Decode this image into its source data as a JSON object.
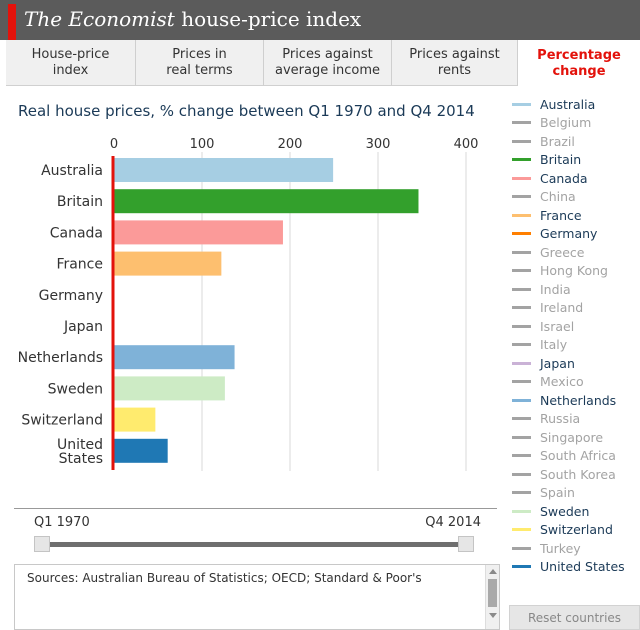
{
  "header": {
    "title_italic": "The Economist",
    "title_rest": " house-price index"
  },
  "tabs": [
    {
      "line1": "House-price",
      "line2": "index",
      "active": false
    },
    {
      "line1": "Prices in",
      "line2": "real terms",
      "active": false
    },
    {
      "line1": "Prices against",
      "line2": "average income",
      "active": false
    },
    {
      "line1": "Prices against",
      "line2": "rents",
      "active": false
    },
    {
      "line1": "Percentage",
      "line2": "change",
      "active": true
    }
  ],
  "chart_data": {
    "type": "bar",
    "orientation": "horizontal",
    "title": "Real house prices, % change between Q1 1970 and Q4 2014",
    "categories": [
      "Australia",
      "Britain",
      "Canada",
      "France",
      "Germany",
      "Japan",
      "Netherlands",
      "Sweden",
      "Switzerland",
      "United States"
    ],
    "values": [
      249,
      346,
      192,
      122,
      0,
      0,
      137,
      126,
      47,
      61
    ],
    "colors": [
      "#a6cee3",
      "#33a02c",
      "#fb9a99",
      "#fdbf6f",
      "#ff7f00",
      "#cab2d6",
      "#7fb2d8",
      "#cdebc5",
      "#ffeb6e",
      "#1f78b4"
    ],
    "xlim": [
      0,
      400
    ],
    "ticks": [
      0,
      100,
      200,
      300,
      400
    ],
    "grid": true,
    "zero_line_color": "#e3120b"
  },
  "legend": {
    "items": [
      {
        "label": "Australia",
        "color": "#a6cee3",
        "active": true
      },
      {
        "label": "Belgium",
        "color": "#a3a3a3",
        "active": false
      },
      {
        "label": "Brazil",
        "color": "#a3a3a3",
        "active": false
      },
      {
        "label": "Britain",
        "color": "#33a02c",
        "active": true
      },
      {
        "label": "Canada",
        "color": "#fb9a99",
        "active": true
      },
      {
        "label": "China",
        "color": "#a3a3a3",
        "active": false
      },
      {
        "label": "France",
        "color": "#fdbf6f",
        "active": true
      },
      {
        "label": "Germany",
        "color": "#ff7f00",
        "active": true
      },
      {
        "label": "Greece",
        "color": "#a3a3a3",
        "active": false
      },
      {
        "label": "Hong Kong",
        "color": "#a3a3a3",
        "active": false
      },
      {
        "label": "India",
        "color": "#a3a3a3",
        "active": false
      },
      {
        "label": "Ireland",
        "color": "#a3a3a3",
        "active": false
      },
      {
        "label": "Israel",
        "color": "#a3a3a3",
        "active": false
      },
      {
        "label": "Italy",
        "color": "#a3a3a3",
        "active": false
      },
      {
        "label": "Japan",
        "color": "#cab2d6",
        "active": true
      },
      {
        "label": "Mexico",
        "color": "#a3a3a3",
        "active": false
      },
      {
        "label": "Netherlands",
        "color": "#7fb2d8",
        "active": true
      },
      {
        "label": "Russia",
        "color": "#a3a3a3",
        "active": false
      },
      {
        "label": "Singapore",
        "color": "#a3a3a3",
        "active": false
      },
      {
        "label": "South Africa",
        "color": "#a3a3a3",
        "active": false
      },
      {
        "label": "South Korea",
        "color": "#a3a3a3",
        "active": false
      },
      {
        "label": "Spain",
        "color": "#a3a3a3",
        "active": false
      },
      {
        "label": "Sweden",
        "color": "#cdebc5",
        "active": true
      },
      {
        "label": "Switzerland",
        "color": "#ffeb6e",
        "active": true
      },
      {
        "label": "Turkey",
        "color": "#a3a3a3",
        "active": false
      },
      {
        "label": "United States",
        "color": "#1f78b4",
        "active": true
      }
    ],
    "active_text_color": "#1b3a57",
    "inactive_text_color": "#a3a3a3"
  },
  "slider": {
    "start_label": "Q1 1970",
    "end_label": "Q4 2014"
  },
  "sources": {
    "text": "Sources: Australian Bureau of Statistics; OECD; Standard & Poor's"
  },
  "reset_button": {
    "label": "Reset countries"
  }
}
